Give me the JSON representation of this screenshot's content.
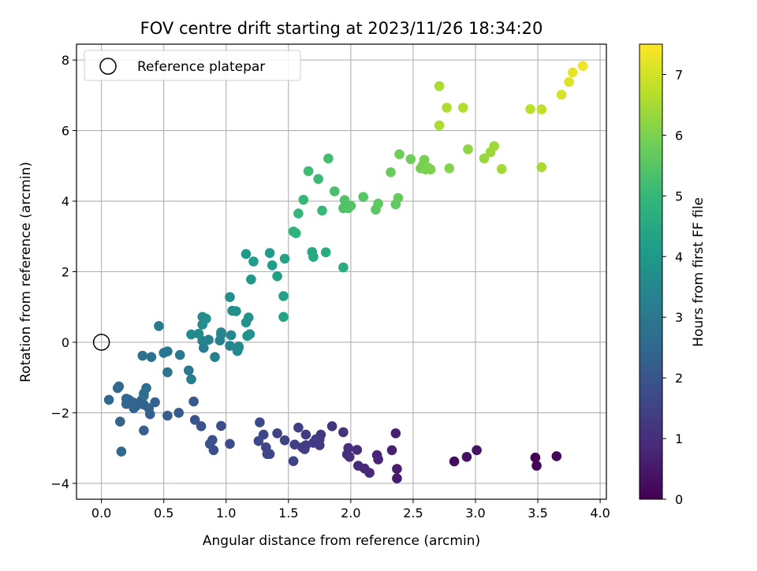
{
  "chart_data": {
    "type": "scatter",
    "title": "FOV centre drift starting at 2023/11/26 18:34:20",
    "xlabel": "Angular distance from reference (arcmin)",
    "ylabel": "Rotation from reference (arcmin)",
    "xlim": [
      -0.2,
      4.05
    ],
    "ylim": [
      -4.45,
      8.45
    ],
    "xticks": [
      0.0,
      0.5,
      1.0,
      1.5,
      2.0,
      2.5,
      3.0,
      3.5,
      4.0
    ],
    "xtick_labels": [
      "0.0",
      "0.5",
      "1.0",
      "1.5",
      "2.0",
      "2.5",
      "3.0",
      "3.5",
      "4.0"
    ],
    "yticks": [
      -4,
      -2,
      0,
      2,
      4,
      6,
      8
    ],
    "ytick_labels": [
      "−4",
      "−2",
      "0",
      "2",
      "4",
      "6",
      "8"
    ],
    "grid": true,
    "legend": {
      "placement": "top-left",
      "entries": [
        "Reference platepar"
      ]
    },
    "reference_point": {
      "x": 0.0,
      "y": 0.0,
      "marker": "open-circle"
    },
    "colorbar": {
      "label": "Hours from first FF file",
      "colormap": "viridis",
      "range": [
        0,
        7.5
      ],
      "ticks": [
        0,
        1,
        2,
        3,
        4,
        5,
        6,
        7
      ],
      "tick_labels": [
        "0",
        "1",
        "2",
        "3",
        "4",
        "5",
        "6",
        "7"
      ]
    },
    "colormap_stops": [
      "#440154",
      "#482878",
      "#3e4989",
      "#31688e",
      "#26828e",
      "#1f9e89",
      "#35b779",
      "#6ece58",
      "#b5de2b",
      "#fde725"
    ],
    "points": [
      {
        "x": 3.48,
        "y": -3.27,
        "c": 0.05
      },
      {
        "x": 3.49,
        "y": -3.5,
        "c": 0.1
      },
      {
        "x": 3.65,
        "y": -3.23,
        "c": 0.1
      },
      {
        "x": 2.83,
        "y": -3.38,
        "c": 0.3
      },
      {
        "x": 2.93,
        "y": -3.25,
        "c": 0.35
      },
      {
        "x": 3.01,
        "y": -3.06,
        "c": 0.4
      },
      {
        "x": 2.37,
        "y": -3.86,
        "c": 0.55
      },
      {
        "x": 2.37,
        "y": -3.59,
        "c": 0.6
      },
      {
        "x": 2.36,
        "y": -2.58,
        "c": 0.65
      },
      {
        "x": 2.33,
        "y": -3.06,
        "c": 0.7
      },
      {
        "x": 2.22,
        "y": -3.32,
        "c": 0.75
      },
      {
        "x": 2.21,
        "y": -3.2,
        "c": 0.8
      },
      {
        "x": 2.15,
        "y": -3.7,
        "c": 0.85
      },
      {
        "x": 2.11,
        "y": -3.58,
        "c": 0.85
      },
      {
        "x": 2.06,
        "y": -3.5,
        "c": 0.9
      },
      {
        "x": 2.05,
        "y": -3.05,
        "c": 0.95
      },
      {
        "x": 1.99,
        "y": -3.25,
        "c": 1.0
      },
      {
        "x": 1.98,
        "y": -3.0,
        "c": 1.0
      },
      {
        "x": 1.97,
        "y": -3.18,
        "c": 1.05
      },
      {
        "x": 1.94,
        "y": -2.55,
        "c": 1.1
      },
      {
        "x": 1.85,
        "y": -2.38,
        "c": 1.15
      },
      {
        "x": 1.76,
        "y": -2.62,
        "c": 1.2
      },
      {
        "x": 1.75,
        "y": -2.75,
        "c": 1.25
      },
      {
        "x": 1.75,
        "y": -2.92,
        "c": 1.25
      },
      {
        "x": 1.72,
        "y": -2.75,
        "c": 1.3
      },
      {
        "x": 1.7,
        "y": -2.85,
        "c": 1.3
      },
      {
        "x": 1.64,
        "y": -2.62,
        "c": 1.35
      },
      {
        "x": 1.64,
        "y": -2.92,
        "c": 1.35
      },
      {
        "x": 1.63,
        "y": -3.03,
        "c": 1.4
      },
      {
        "x": 1.61,
        "y": -2.98,
        "c": 1.4
      },
      {
        "x": 1.58,
        "y": -2.42,
        "c": 1.45
      },
      {
        "x": 1.55,
        "y": -2.9,
        "c": 1.45
      },
      {
        "x": 1.54,
        "y": -3.37,
        "c": 1.5
      },
      {
        "x": 1.47,
        "y": -2.78,
        "c": 1.5
      },
      {
        "x": 1.41,
        "y": -2.58,
        "c": 1.55
      },
      {
        "x": 1.35,
        "y": -3.17,
        "c": 1.6
      },
      {
        "x": 1.33,
        "y": -3.17,
        "c": 1.6
      },
      {
        "x": 1.32,
        "y": -2.98,
        "c": 1.6
      },
      {
        "x": 1.3,
        "y": -2.62,
        "c": 1.65
      },
      {
        "x": 1.27,
        "y": -2.27,
        "c": 1.7
      },
      {
        "x": 1.26,
        "y": -2.8,
        "c": 1.7
      },
      {
        "x": 1.03,
        "y": -2.88,
        "c": 1.75
      },
      {
        "x": 0.96,
        "y": -2.37,
        "c": 1.8
      },
      {
        "x": 0.9,
        "y": -3.06,
        "c": 1.85
      },
      {
        "x": 0.89,
        "y": -2.77,
        "c": 1.85
      },
      {
        "x": 0.87,
        "y": -2.88,
        "c": 1.9
      },
      {
        "x": 0.8,
        "y": -2.38,
        "c": 1.95
      },
      {
        "x": 0.75,
        "y": -2.2,
        "c": 2.0
      },
      {
        "x": 0.74,
        "y": -1.68,
        "c": 2.1
      },
      {
        "x": 0.62,
        "y": -2.0,
        "c": 2.15
      },
      {
        "x": 0.53,
        "y": -2.08,
        "c": 2.2
      },
      {
        "x": 0.39,
        "y": -2.04,
        "c": 2.25
      },
      {
        "x": 0.34,
        "y": -2.5,
        "c": 2.3
      },
      {
        "x": 0.38,
        "y": -1.87,
        "c": 2.3
      },
      {
        "x": 0.43,
        "y": -1.7,
        "c": 2.3
      },
      {
        "x": 0.34,
        "y": -1.77,
        "c": 2.35
      },
      {
        "x": 0.32,
        "y": -1.65,
        "c": 2.35
      },
      {
        "x": 0.28,
        "y": -1.8,
        "c": 2.4
      },
      {
        "x": 0.26,
        "y": -1.87,
        "c": 2.4
      },
      {
        "x": 0.25,
        "y": -1.7,
        "c": 2.4
      },
      {
        "x": 0.22,
        "y": -1.63,
        "c": 2.45
      },
      {
        "x": 0.2,
        "y": -1.75,
        "c": 2.45
      },
      {
        "x": 0.2,
        "y": -1.6,
        "c": 2.45
      },
      {
        "x": 0.15,
        "y": -2.25,
        "c": 2.45
      },
      {
        "x": 0.16,
        "y": -3.1,
        "c": 2.5
      },
      {
        "x": 0.06,
        "y": -1.63,
        "c": 2.5
      },
      {
        "x": 0.14,
        "y": -1.25,
        "c": 2.55
      },
      {
        "x": 0.13,
        "y": -1.3,
        "c": 2.6
      },
      {
        "x": 0.34,
        "y": -1.45,
        "c": 2.6
      },
      {
        "x": 0.36,
        "y": -1.3,
        "c": 2.65
      },
      {
        "x": 0.34,
        "y": -1.52,
        "c": 2.65
      },
      {
        "x": 0.33,
        "y": -0.38,
        "c": 2.8
      },
      {
        "x": 0.4,
        "y": -0.42,
        "c": 2.85
      },
      {
        "x": 0.53,
        "y": -0.85,
        "c": 2.9
      },
      {
        "x": 0.5,
        "y": -0.3,
        "c": 2.95
      },
      {
        "x": 0.53,
        "y": -0.26,
        "c": 2.95
      },
      {
        "x": 0.63,
        "y": -0.36,
        "c": 3.0
      },
      {
        "x": 0.7,
        "y": -0.8,
        "c": 3.05
      },
      {
        "x": 0.72,
        "y": -1.05,
        "c": 3.1
      },
      {
        "x": 0.46,
        "y": 0.46,
        "c": 3.1
      },
      {
        "x": 0.82,
        "y": -0.16,
        "c": 3.2
      },
      {
        "x": 0.91,
        "y": -0.42,
        "c": 3.25
      },
      {
        "x": 0.81,
        "y": 0.04,
        "c": 3.3
      },
      {
        "x": 0.86,
        "y": 0.07,
        "c": 3.35
      },
      {
        "x": 0.95,
        "y": 0.05,
        "c": 3.35
      },
      {
        "x": 0.96,
        "y": 0.22,
        "c": 3.4
      },
      {
        "x": 0.96,
        "y": 0.28,
        "c": 3.4
      },
      {
        "x": 1.03,
        "y": -0.1,
        "c": 3.45
      },
      {
        "x": 1.04,
        "y": 0.2,
        "c": 3.5
      },
      {
        "x": 1.09,
        "y": -0.25,
        "c": 3.5
      },
      {
        "x": 1.1,
        "y": -0.16,
        "c": 3.55
      },
      {
        "x": 1.1,
        "y": -0.12,
        "c": 3.55
      },
      {
        "x": 0.72,
        "y": 0.22,
        "c": 3.6
      },
      {
        "x": 0.78,
        "y": 0.24,
        "c": 3.6
      },
      {
        "x": 0.81,
        "y": 0.5,
        "c": 3.65
      },
      {
        "x": 0.81,
        "y": 0.72,
        "c": 3.65
      },
      {
        "x": 0.84,
        "y": 0.67,
        "c": 3.7
      },
      {
        "x": 1.05,
        "y": 0.89,
        "c": 3.7
      },
      {
        "x": 1.08,
        "y": 0.88,
        "c": 3.75
      },
      {
        "x": 1.03,
        "y": 1.28,
        "c": 3.75
      },
      {
        "x": 1.16,
        "y": 0.56,
        "c": 3.8
      },
      {
        "x": 1.18,
        "y": 0.7,
        "c": 3.8
      },
      {
        "x": 1.17,
        "y": 0.18,
        "c": 3.85
      },
      {
        "x": 1.19,
        "y": 0.23,
        "c": 3.85
      },
      {
        "x": 1.2,
        "y": 1.78,
        "c": 3.95
      },
      {
        "x": 1.16,
        "y": 2.5,
        "c": 4.05
      },
      {
        "x": 1.22,
        "y": 2.29,
        "c": 4.1
      },
      {
        "x": 1.35,
        "y": 2.53,
        "c": 4.15
      },
      {
        "x": 1.37,
        "y": 2.18,
        "c": 4.2
      },
      {
        "x": 1.41,
        "y": 1.87,
        "c": 4.25
      },
      {
        "x": 1.46,
        "y": 1.31,
        "c": 4.3
      },
      {
        "x": 1.46,
        "y": 0.72,
        "c": 4.3
      },
      {
        "x": 1.47,
        "y": 2.37,
        "c": 4.35
      },
      {
        "x": 1.69,
        "y": 2.56,
        "c": 4.5
      },
      {
        "x": 1.7,
        "y": 2.42,
        "c": 4.55
      },
      {
        "x": 1.8,
        "y": 2.55,
        "c": 4.6
      },
      {
        "x": 1.94,
        "y": 2.12,
        "c": 4.65
      },
      {
        "x": 1.54,
        "y": 3.14,
        "c": 4.8
      },
      {
        "x": 1.56,
        "y": 3.09,
        "c": 4.85
      },
      {
        "x": 1.58,
        "y": 3.65,
        "c": 4.95
      },
      {
        "x": 1.62,
        "y": 4.04,
        "c": 5.0
      },
      {
        "x": 1.77,
        "y": 3.73,
        "c": 5.05
      },
      {
        "x": 1.74,
        "y": 4.63,
        "c": 5.1
      },
      {
        "x": 1.66,
        "y": 4.85,
        "c": 5.15
      },
      {
        "x": 1.82,
        "y": 5.21,
        "c": 5.2
      },
      {
        "x": 1.87,
        "y": 4.28,
        "c": 5.3
      },
      {
        "x": 1.94,
        "y": 3.8,
        "c": 5.35
      },
      {
        "x": 1.95,
        "y": 4.03,
        "c": 5.4
      },
      {
        "x": 1.98,
        "y": 3.8,
        "c": 5.4
      },
      {
        "x": 2.0,
        "y": 3.87,
        "c": 5.45
      },
      {
        "x": 2.1,
        "y": 4.12,
        "c": 5.5
      },
      {
        "x": 2.2,
        "y": 3.76,
        "c": 5.55
      },
      {
        "x": 2.22,
        "y": 3.93,
        "c": 5.6
      },
      {
        "x": 2.36,
        "y": 3.91,
        "c": 5.65
      },
      {
        "x": 2.38,
        "y": 4.09,
        "c": 5.7
      },
      {
        "x": 2.32,
        "y": 4.82,
        "c": 5.75
      },
      {
        "x": 2.39,
        "y": 5.33,
        "c": 5.8
      },
      {
        "x": 2.48,
        "y": 5.19,
        "c": 5.85
      },
      {
        "x": 2.56,
        "y": 4.93,
        "c": 5.9
      },
      {
        "x": 2.58,
        "y": 5.04,
        "c": 5.9
      },
      {
        "x": 2.59,
        "y": 5.17,
        "c": 5.95
      },
      {
        "x": 2.6,
        "y": 4.9,
        "c": 5.95
      },
      {
        "x": 2.62,
        "y": 4.95,
        "c": 6.0
      },
      {
        "x": 2.64,
        "y": 4.9,
        "c": 6.0
      },
      {
        "x": 2.79,
        "y": 4.93,
        "c": 6.1
      },
      {
        "x": 2.94,
        "y": 5.47,
        "c": 6.2
      },
      {
        "x": 3.07,
        "y": 5.21,
        "c": 6.3
      },
      {
        "x": 3.12,
        "y": 5.39,
        "c": 6.35
      },
      {
        "x": 3.15,
        "y": 5.56,
        "c": 6.4
      },
      {
        "x": 3.21,
        "y": 4.91,
        "c": 6.45
      },
      {
        "x": 3.53,
        "y": 4.96,
        "c": 6.5
      },
      {
        "x": 2.71,
        "y": 6.15,
        "c": 6.55
      },
      {
        "x": 2.71,
        "y": 7.26,
        "c": 6.55
      },
      {
        "x": 2.77,
        "y": 6.65,
        "c": 6.6
      },
      {
        "x": 2.9,
        "y": 6.65,
        "c": 6.65
      },
      {
        "x": 3.44,
        "y": 6.61,
        "c": 6.75
      },
      {
        "x": 3.53,
        "y": 6.6,
        "c": 6.8
      },
      {
        "x": 3.69,
        "y": 7.02,
        "c": 7.05
      },
      {
        "x": 3.75,
        "y": 7.38,
        "c": 7.15
      },
      {
        "x": 3.78,
        "y": 7.65,
        "c": 7.25
      },
      {
        "x": 3.86,
        "y": 7.83,
        "c": 7.35
      }
    ]
  }
}
